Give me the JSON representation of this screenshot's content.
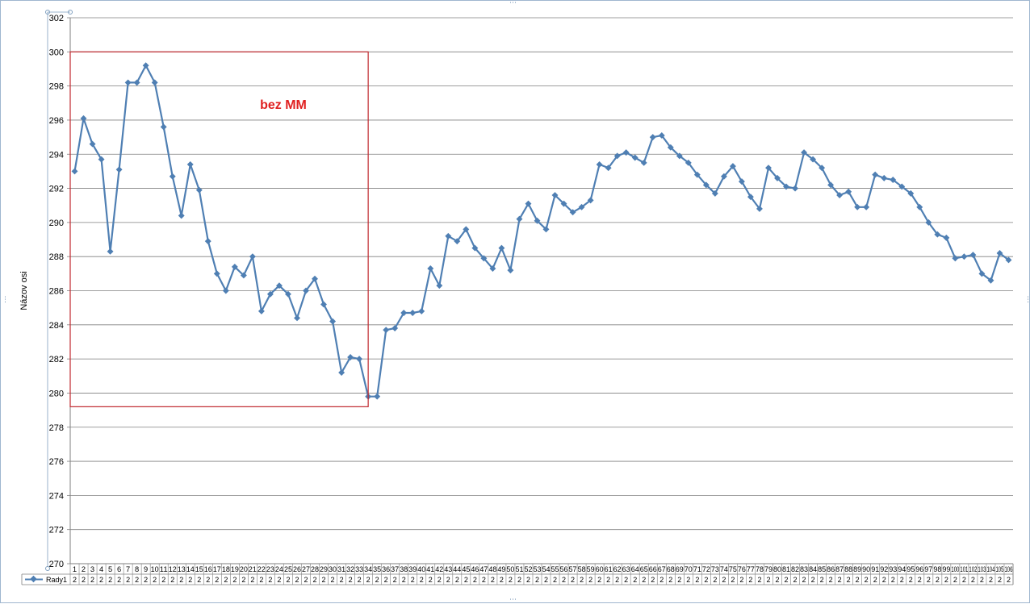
{
  "chart_data": {
    "type": "line",
    "title": "",
    "xlabel": "",
    "ylabel": "Názov osi",
    "ylim": [
      270,
      302
    ],
    "ytick_step": 2,
    "grid": true,
    "legend_position": "bottom-left (data table)",
    "series": [
      {
        "name": "Rady1",
        "color": "#4f7fb3",
        "values": [
          293.0,
          296.1,
          294.6,
          293.7,
          288.3,
          293.1,
          298.2,
          298.2,
          299.2,
          298.2,
          295.6,
          292.7,
          290.4,
          293.4,
          291.9,
          288.9,
          287.0,
          286.0,
          287.4,
          286.9,
          288.0,
          284.8,
          285.8,
          286.3,
          285.8,
          284.4,
          286.0,
          286.7,
          285.2,
          284.2,
          281.2,
          282.1,
          282.0,
          279.8,
          279.8,
          283.7,
          283.8,
          284.7,
          284.7,
          284.8,
          287.3,
          286.3,
          289.2,
          288.9,
          289.6,
          288.5,
          287.9,
          287.3,
          288.5,
          287.2,
          290.2,
          291.1,
          290.1,
          289.6,
          291.6,
          291.1,
          290.6,
          290.9,
          291.3,
          293.4,
          293.2,
          293.9,
          294.1,
          293.8,
          293.5,
          295.0,
          295.1,
          294.4,
          293.9,
          293.5,
          292.8,
          292.2,
          291.7,
          292.7,
          293.3,
          292.4,
          291.5,
          290.8,
          293.2,
          292.6,
          292.1,
          292.0,
          294.1,
          293.7,
          293.2,
          292.2,
          291.6,
          291.8,
          290.9,
          290.9,
          292.8,
          292.6,
          292.5,
          292.1,
          291.7,
          290.9,
          290.0,
          289.3,
          289.1,
          287.9,
          288.0,
          288.1,
          287.0,
          286.6,
          288.2,
          287.8
        ]
      }
    ],
    "data_table_value": "2",
    "annotation": {
      "text": "bez MM",
      "color": "#e02020",
      "box_x_range": [
        1,
        34
      ],
      "box_y_range": [
        279.2,
        300
      ]
    }
  },
  "ui": {
    "frame_border": "#9fb6cf",
    "gridline_color": "#7f7f7f"
  }
}
